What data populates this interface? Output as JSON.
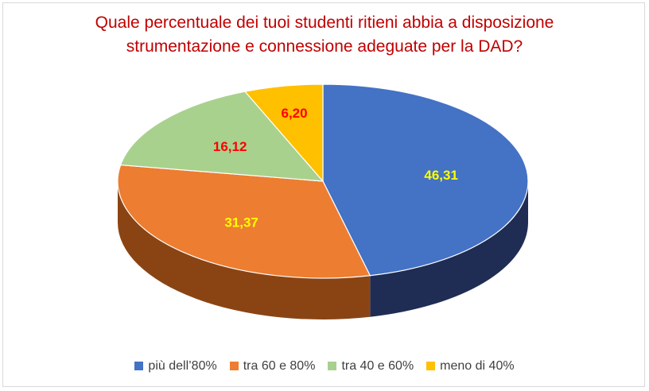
{
  "chart_data": {
    "type": "pie",
    "title_lines": [
      "Quale percentuale dei tuoi studenti ritieni abbia a disposizione",
      "strumentazione e connessione adeguate per la DAD?"
    ],
    "categories": [
      "più dell’80%",
      "tra 60 e 80%",
      "tra 40 e 60%",
      "meno di 40%"
    ],
    "values": [
      46.31,
      31.37,
      16.12,
      6.2
    ],
    "data_labels": [
      "46,31",
      "31,37",
      "16,12",
      "6,20"
    ],
    "colors": [
      "#4472c4",
      "#ed7d31",
      "#a9d18e",
      "#ffc000"
    ],
    "side_colors": [
      "#1f2d55",
      "#8a4413",
      "#5e7a4a",
      "#8a6a00"
    ],
    "label_colors": [
      "#ffff00",
      "#ffff00",
      "#ff0000",
      "#ff0000"
    ],
    "legend_position": "bottom",
    "style": "3d"
  }
}
